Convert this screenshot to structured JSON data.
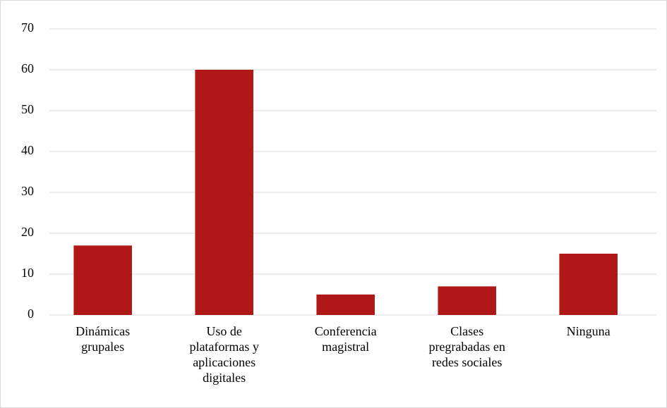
{
  "chart_data": {
    "type": "bar",
    "categories": [
      "Dinámicas grupales",
      "Uso de plataformas y aplicaciones digitales",
      "Conferencia magistral",
      "Clases pregrabadas en redes sociales",
      "Ninguna"
    ],
    "values": [
      17,
      60,
      5,
      7,
      15
    ],
    "color": "#b01717",
    "ylim": [
      0,
      70
    ],
    "yticks": [
      0,
      10,
      20,
      30,
      40,
      50,
      60,
      70
    ],
    "grid": true
  }
}
